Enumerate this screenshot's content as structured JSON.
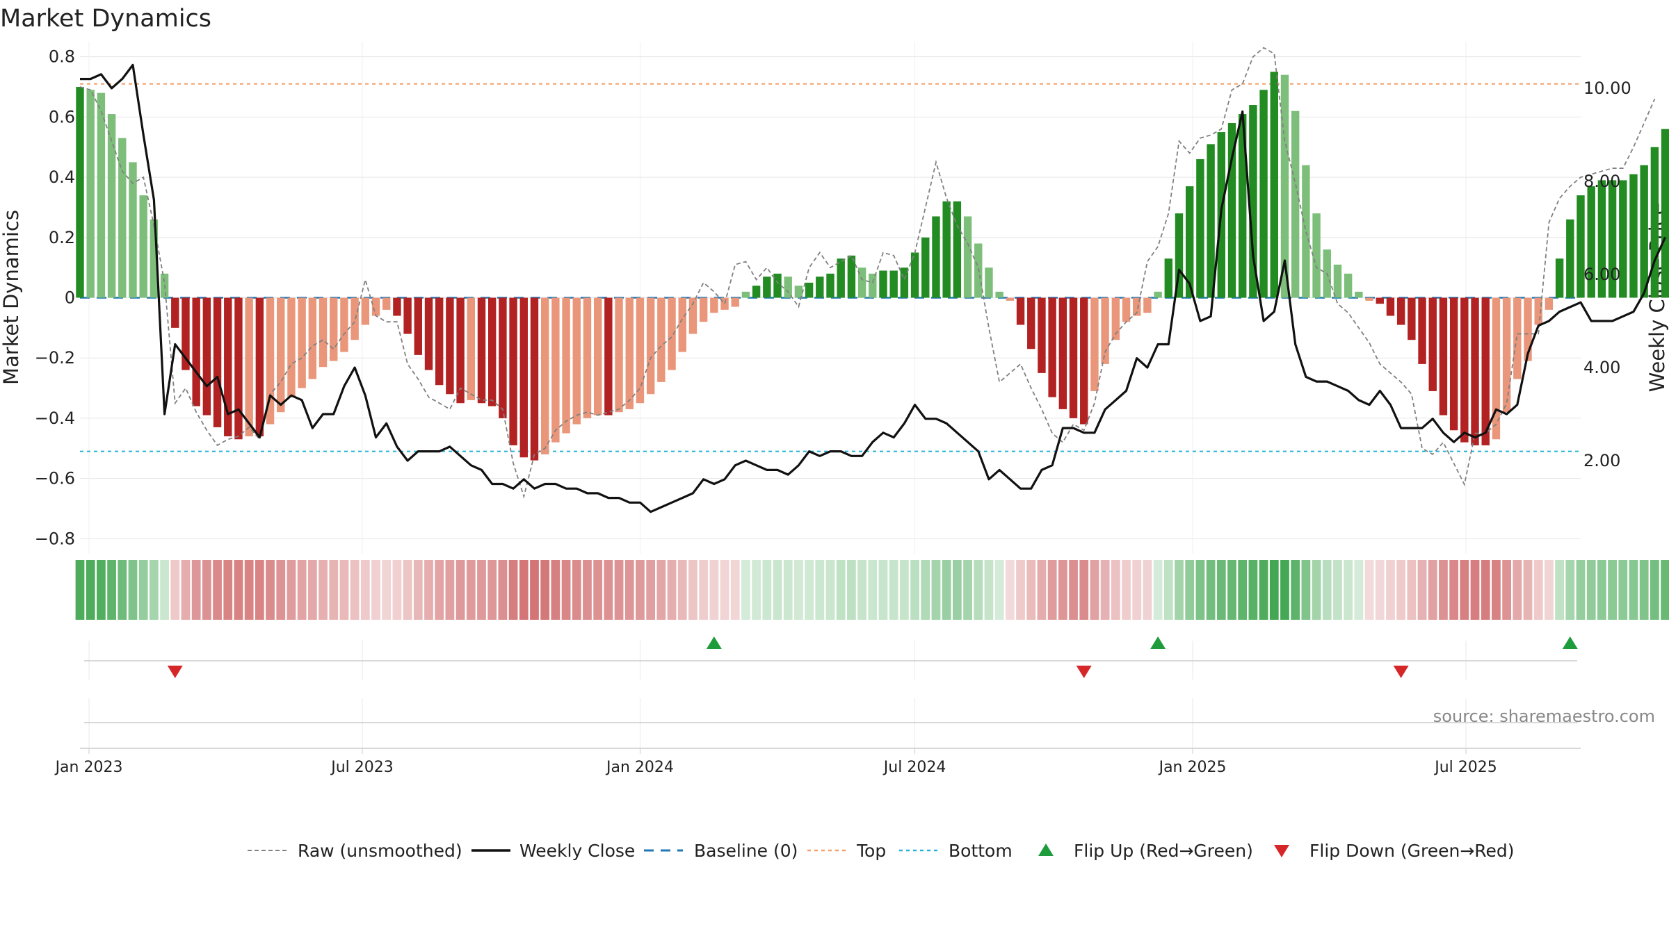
{
  "chart_data": {
    "type": "bar",
    "title": "Market Dynamics",
    "ylabel": "Market Dynamics",
    "y2label": "Weekly Close Price",
    "ylim": [
      -0.85,
      0.85
    ],
    "y2lim": [
      0.0,
      11.0
    ],
    "yticks": [
      0.8,
      0.6,
      0.4,
      0.2,
      0,
      -0.2,
      -0.4,
      -0.6,
      -0.8
    ],
    "yticklabels": [
      "0.8",
      "0.6",
      "0.4",
      "0.2",
      "0",
      "−0.2",
      "−0.4",
      "−0.6",
      "−0.8"
    ],
    "y2ticks": [
      10,
      8,
      6,
      4,
      2
    ],
    "y2ticklabels": [
      "10.00",
      "8.00",
      "6.00",
      "4.00",
      "2.00"
    ],
    "x_start": "2022-12-26",
    "x_end": "2025-09-15",
    "xticks": [
      "2023-01-01",
      "2023-07-01",
      "2024-01-01",
      "2024-07-01",
      "2025-01-01",
      "2025-07-01"
    ],
    "xticklabels": [
      "Jan 2023",
      "Jul 2023",
      "Jan 2024",
      "Jul 2024",
      "Jan 2025",
      "Jul 2025"
    ],
    "top_level": 0.71,
    "bottom_level": -0.51,
    "baseline": 0,
    "grid": true,
    "legend_position": "bottom",
    "weeks_start": "2022-12-26",
    "bars": [
      0.7,
      0.69,
      0.68,
      0.61,
      0.53,
      0.45,
      0.34,
      0.26,
      0.08,
      -0.1,
      -0.24,
      -0.36,
      -0.39,
      -0.43,
      -0.46,
      -0.47,
      -0.46,
      -0.46,
      -0.42,
      -0.38,
      -0.33,
      -0.3,
      -0.27,
      -0.23,
      -0.21,
      -0.18,
      -0.14,
      -0.09,
      -0.06,
      -0.04,
      -0.06,
      -0.12,
      -0.19,
      -0.24,
      -0.29,
      -0.32,
      -0.35,
      -0.34,
      -0.35,
      -0.36,
      -0.4,
      -0.49,
      -0.53,
      -0.54,
      -0.52,
      -0.48,
      -0.45,
      -0.42,
      -0.4,
      -0.39,
      -0.39,
      -0.38,
      -0.37,
      -0.35,
      -0.32,
      -0.28,
      -0.24,
      -0.18,
      -0.12,
      -0.08,
      -0.05,
      -0.04,
      -0.03,
      0.02,
      0.04,
      0.07,
      0.08,
      0.07,
      0.04,
      0.05,
      0.07,
      0.08,
      0.13,
      0.14,
      0.1,
      0.08,
      0.09,
      0.09,
      0.1,
      0.15,
      0.2,
      0.27,
      0.32,
      0.32,
      0.27,
      0.18,
      0.1,
      0.02,
      -0.01,
      -0.09,
      -0.17,
      -0.25,
      -0.33,
      -0.37,
      -0.4,
      -0.42,
      -0.31,
      -0.22,
      -0.14,
      -0.08,
      -0.06,
      -0.05,
      0.02,
      0.13,
      0.28,
      0.37,
      0.46,
      0.51,
      0.55,
      0.58,
      0.61,
      0.64,
      0.69,
      0.75,
      0.74,
      0.62,
      0.44,
      0.28,
      0.16,
      0.11,
      0.08,
      0.02,
      -0.01,
      -0.02,
      -0.06,
      -0.09,
      -0.14,
      -0.22,
      -0.31,
      -0.39,
      -0.44,
      -0.48,
      -0.49,
      -0.49,
      -0.47,
      -0.38,
      -0.27,
      -0.21,
      -0.09,
      -0.04,
      0.13,
      0.26,
      0.34,
      0.37,
      0.39,
      0.39,
      0.39,
      0.41,
      0.44,
      0.5,
      0.56
    ],
    "raw": [
      0.7,
      0.69,
      0.62,
      0.52,
      0.42,
      0.38,
      0.4,
      0.24,
      0.05,
      -0.35,
      -0.3,
      -0.38,
      -0.44,
      -0.49,
      -0.47,
      -0.46,
      -0.43,
      -0.47,
      -0.32,
      -0.28,
      -0.22,
      -0.2,
      -0.16,
      -0.14,
      -0.17,
      -0.12,
      -0.08,
      0.06,
      -0.06,
      -0.08,
      -0.08,
      -0.22,
      -0.27,
      -0.33,
      -0.35,
      -0.37,
      -0.3,
      -0.32,
      -0.34,
      -0.34,
      -0.37,
      -0.55,
      -0.66,
      -0.52,
      -0.5,
      -0.44,
      -0.41,
      -0.39,
      -0.38,
      -0.39,
      -0.38,
      -0.37,
      -0.34,
      -0.3,
      -0.2,
      -0.16,
      -0.13,
      -0.07,
      -0.02,
      0.05,
      0.02,
      -0.02,
      0.11,
      0.12,
      0.06,
      0.1,
      0.05,
      0.02,
      -0.03,
      0.1,
      0.15,
      0.1,
      0.12,
      0.14,
      0.06,
      0.05,
      0.15,
      0.14,
      0.06,
      0.15,
      0.3,
      0.45,
      0.33,
      0.24,
      0.18,
      0.1,
      -0.1,
      -0.28,
      -0.25,
      -0.22,
      -0.3,
      -0.37,
      -0.45,
      -0.48,
      -0.42,
      -0.44,
      -0.35,
      -0.18,
      -0.12,
      -0.08,
      -0.05,
      0.12,
      0.17,
      0.28,
      0.52,
      0.48,
      0.53,
      0.54,
      0.56,
      0.69,
      0.71,
      0.8,
      0.83,
      0.81,
      0.52,
      0.38,
      0.22,
      0.1,
      0.08,
      -0.02,
      -0.05,
      -0.1,
      -0.15,
      -0.22,
      -0.25,
      -0.28,
      -0.32,
      -0.5,
      -0.52,
      -0.48,
      -0.55,
      -0.62,
      -0.45,
      -0.45,
      -0.42,
      -0.35,
      -0.12,
      -0.12,
      -0.12,
      0.25,
      0.33,
      0.37,
      0.4,
      0.41,
      0.42,
      0.43,
      0.43,
      0.5,
      0.58,
      0.66
    ],
    "weekly_close": [
      10.2,
      10.2,
      10.3,
      10.0,
      10.2,
      10.5,
      9.0,
      7.6,
      3.0,
      4.5,
      4.2,
      3.9,
      3.6,
      3.8,
      3.0,
      3.1,
      2.8,
      2.5,
      3.4,
      3.2,
      3.4,
      3.3,
      2.7,
      3.0,
      3.0,
      3.6,
      4.0,
      3.4,
      2.5,
      2.8,
      2.3,
      2.0,
      2.2,
      2.2,
      2.2,
      2.3,
      2.1,
      1.9,
      1.8,
      1.5,
      1.5,
      1.4,
      1.6,
      1.4,
      1.5,
      1.5,
      1.4,
      1.4,
      1.3,
      1.3,
      1.2,
      1.2,
      1.1,
      1.1,
      0.9,
      1.0,
      1.1,
      1.2,
      1.3,
      1.6,
      1.5,
      1.6,
      1.9,
      2.0,
      1.9,
      1.8,
      1.8,
      1.7,
      1.9,
      2.2,
      2.1,
      2.2,
      2.2,
      2.1,
      2.1,
      2.4,
      2.6,
      2.5,
      2.8,
      3.2,
      2.9,
      2.9,
      2.8,
      2.6,
      2.4,
      2.2,
      1.6,
      1.8,
      1.6,
      1.4,
      1.4,
      1.8,
      1.9,
      2.7,
      2.7,
      2.6,
      2.6,
      3.1,
      3.3,
      3.5,
      4.2,
      4.0,
      4.5,
      4.5,
      6.1,
      5.8,
      5.0,
      5.1,
      7.4,
      8.5,
      9.5,
      6.4,
      5.0,
      5.2,
      6.3,
      4.5,
      3.8,
      3.7,
      3.7,
      3.6,
      3.5,
      3.3,
      3.2,
      3.5,
      3.2,
      2.7,
      2.7,
      2.7,
      2.9,
      2.6,
      2.4,
      2.6,
      2.5,
      2.6,
      3.1,
      3.0,
      3.2,
      4.3,
      4.9,
      5.0,
      5.2,
      5.3,
      5.4,
      5.0,
      5.0,
      5.0,
      5.1,
      5.2,
      5.6,
      6.3,
      6.8
    ],
    "flip_up_weeks": [
      60,
      102,
      141
    ],
    "flip_down_weeks": [
      9,
      95,
      125
    ],
    "legend": [
      "Raw (unsmoothed)",
      "Weekly Close",
      "Baseline (0)",
      "Top",
      "Bottom",
      "Flip Up (Red→Green)",
      "Flip Down (Green→Red)"
    ],
    "colors": {
      "green_strong": "#228b22",
      "green_light": "#7dbf7a",
      "red_strong": "#b22222",
      "red_light": "#e9967a",
      "raw_line": "#808080",
      "close_line": "#111111",
      "baseline": "#1f77b4",
      "top": "#f4a06b",
      "bottom": "#22b5d6",
      "flip_up": "#1e9c3b",
      "flip_down": "#d62728"
    }
  },
  "source": "source: sharemaestro.com"
}
